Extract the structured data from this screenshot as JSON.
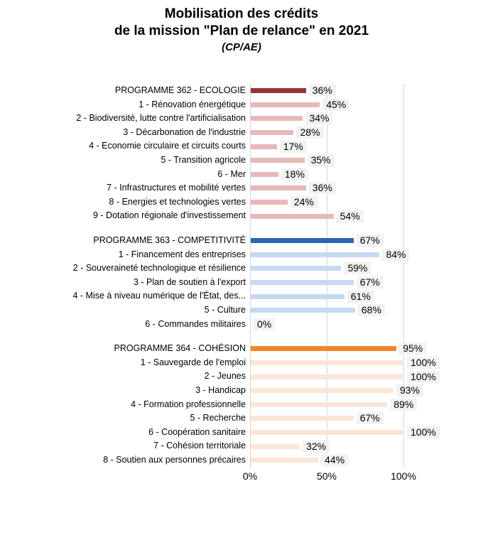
{
  "chart_data": {
    "type": "bar",
    "orientation": "horizontal",
    "title_line1": "Mobilisation des crédits",
    "title_line2": "de la mission \"Plan de relance\" en 2021",
    "subtitle": "(CP/AE)",
    "value_suffix": "%",
    "x_axis": {
      "range": [
        0,
        100
      ],
      "tick_values": [
        0,
        50,
        100
      ],
      "tick_labels": [
        "0%",
        "50%",
        "100%"
      ],
      "gridlines": true
    },
    "value_label_bg": "#f2f2f2",
    "gridline_color": "#d6d6d6",
    "groups": [
      {
        "program": {
          "label": "PROGRAMME 362 - ECOLOGIE",
          "value": 36
        },
        "colors": {
          "program": "#943634",
          "item": "#e6b9b8"
        },
        "items": [
          {
            "label": "1 - Rénovation énergétique",
            "value": 45
          },
          {
            "label": "2 - Biodiversité, lutte contre l'artificialisation",
            "value": 34
          },
          {
            "label": "3 - Décarbonation de l'industrie",
            "value": 28
          },
          {
            "label": "4 - Economie circulaire et circuits courts",
            "value": 17
          },
          {
            "label": "5 - Transition agricole",
            "value": 35
          },
          {
            "label": "6 - Mer",
            "value": 18
          },
          {
            "label": "7 - Infrastructures et mobilité vertes",
            "value": 36
          },
          {
            "label": "8 - Energies et technologies vertes",
            "value": 24
          },
          {
            "label": "9 - Dotation régionale d'investissement",
            "value": 54
          }
        ]
      },
      {
        "program": {
          "label": "PROGRAMME 363 - COMPETITIVITÉ",
          "value": 67
        },
        "colors": {
          "program": "#2e65ae",
          "item": "#c6d9f0"
        },
        "items": [
          {
            "label": "1 - Financement des entreprises",
            "value": 84
          },
          {
            "label": "2 - Souveraineté technologique et résilience",
            "value": 59
          },
          {
            "label": "3 - Plan de soutien à l'export",
            "value": 67
          },
          {
            "label": "4 - Mise à niveau numérique de l'État, des...",
            "value": 61
          },
          {
            "label": "5 - Culture",
            "value": 68
          },
          {
            "label": "6 - Commandes militaires",
            "value": 0
          }
        ]
      },
      {
        "program": {
          "label": "PROGRAMME 364 - COHÉSION",
          "value": 95
        },
        "colors": {
          "program": "#f0862d",
          "item": "#fbe5d6"
        },
        "items": [
          {
            "label": "1 - Sauvegarde de l'emploi",
            "value": 100
          },
          {
            "label": "2 - Jeunes",
            "value": 100
          },
          {
            "label": "3 - Handicap",
            "value": 93
          },
          {
            "label": "4 - Formation professionnelle",
            "value": 89
          },
          {
            "label": "5 - Recherche",
            "value": 67
          },
          {
            "label": "6 - Coopération sanitaire",
            "value": 100
          },
          {
            "label": "7 - Cohésion territoriale",
            "value": 32
          },
          {
            "label": "8 - Soutien aux personnes précaires",
            "value": 44
          }
        ]
      }
    ]
  }
}
